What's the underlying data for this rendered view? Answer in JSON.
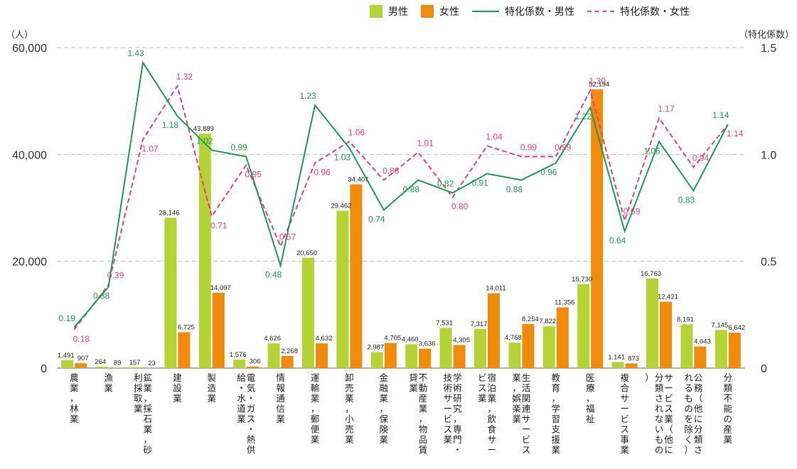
{
  "chart_data": {
    "type": "bar",
    "left_unit": "（人）",
    "right_unit": "（特化係数）",
    "legend": {
      "male": "男性",
      "female": "女性",
      "coef_male": "特化係数・男性",
      "coef_female": "特化係数・女性"
    },
    "colors": {
      "male": "#b5d334",
      "female": "#f28a0a",
      "coef_male": "#1f9d55",
      "coef_female": "#e0457b"
    },
    "ylim_left": [
      0,
      60000
    ],
    "ylim_right": [
      0,
      1.5
    ],
    "left_ticks": [
      "0",
      "20,000",
      "40,000",
      "60,000"
    ],
    "right_ticks": [
      "0",
      "0.5",
      "1.0",
      "1.5"
    ],
    "grid": true,
    "categories": [
      "農業，林業",
      "漁業",
      "鉱業，採石業，砂利採取業",
      "建設業",
      "製造業",
      "電気・ガス・熱供給・水道業",
      "情報通信業",
      "運輸業，郵便業",
      "卸売業，小売業",
      "金融業，保険業",
      "不動産業，物品賃貸業",
      "学術研究，専門・技術サービス業",
      "宿泊業，飲食サービス業",
      "生活関連サービス業，娯楽業",
      "教育，学習支援業",
      "医療，福祉",
      "複合サービス事業",
      "サービス業（他に分類されないもの）",
      "公務（他に分類されるものを除く）",
      "分類不能の産業"
    ],
    "series": [
      {
        "name": "男性",
        "kind": "bar",
        "values": [
          1491,
          264,
          157,
          28146,
          43889,
          1576,
          4626,
          20650,
          29462,
          2987,
          4460,
          7531,
          7317,
          4768,
          7822,
          15730,
          1141,
          16763,
          8191,
          7145
        ],
        "labels": [
          "1,491",
          "264",
          "157",
          "28,146",
          "43,889",
          "1,576",
          "4,626",
          "20,650",
          "29,462",
          "2,987",
          "4,460",
          "7,531",
          "7,317",
          "4,768",
          "7,822",
          "15,730",
          "1,141",
          "16,763",
          "8,191",
          "7,145"
        ]
      },
      {
        "name": "女性",
        "kind": "bar",
        "values": [
          907,
          89,
          23,
          6725,
          14097,
          306,
          2268,
          4632,
          34407,
          4705,
          3636,
          4305,
          14011,
          8254,
          11356,
          52194,
          873,
          12421,
          4043,
          6642
        ],
        "labels": [
          "907",
          "89",
          "23",
          "6,725",
          "14,097",
          "306",
          "2,268",
          "4,632",
          "34,407",
          "4,705",
          "3,636",
          "4,305",
          "14,011",
          "8,254",
          "11,356",
          "52,194",
          "873",
          "12,421",
          "4,043",
          "6,642"
        ]
      },
      {
        "name": "特化係数・男性",
        "kind": "line",
        "values": [
          0.19,
          0.38,
          1.43,
          1.18,
          1.02,
          0.99,
          0.48,
          1.23,
          1.03,
          0.74,
          0.88,
          0.82,
          0.91,
          0.88,
          0.96,
          1.22,
          0.64,
          1.06,
          0.83,
          1.14
        ],
        "labels": [
          "0.19",
          "0.38",
          "1.43",
          "1.18",
          "1.02",
          "0.99",
          "0.48",
          "1.23",
          "1.03",
          "0.74",
          "0.88",
          "0.82",
          "0.91",
          "0.88",
          "0.96",
          "1.22",
          "0.64",
          "1.06",
          "0.83",
          "1.14"
        ]
      },
      {
        "name": "特化係数・女性",
        "kind": "line",
        "values": [
          0.18,
          0.39,
          1.07,
          1.32,
          0.71,
          0.95,
          0.57,
          0.96,
          1.06,
          0.88,
          1.01,
          0.8,
          1.04,
          0.99,
          0.99,
          1.3,
          0.69,
          1.17,
          0.94,
          1.14
        ],
        "labels": [
          "0.18",
          "0.39",
          "1.07",
          "1.32",
          "0.71",
          "0.95",
          "0.57",
          "0.96",
          "1.06",
          "0.88",
          "1.01",
          "0.80",
          "1.04",
          "0.99",
          "0.99",
          "1.30",
          "0.69",
          "1.17",
          "0.94",
          "1.14"
        ]
      }
    ]
  }
}
